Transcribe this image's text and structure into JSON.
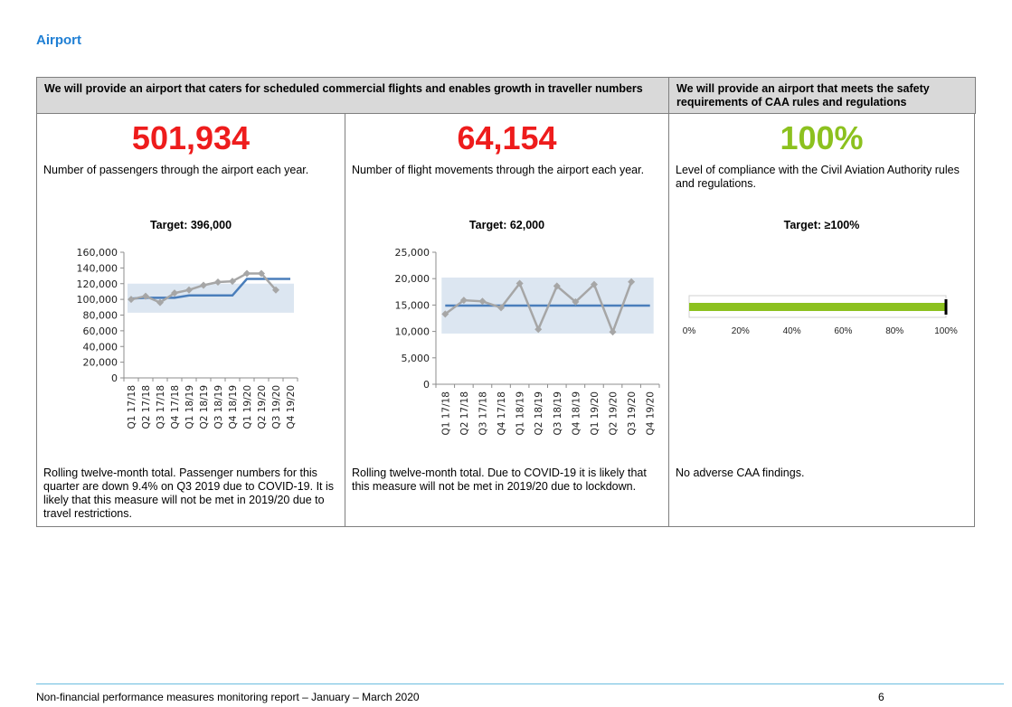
{
  "section_title": "Airport",
  "headers": [
    "We will provide an airport that caters for scheduled commercial flights and enables growth in traveller numbers",
    "We will provide an airport that meets the safety requirements of CAA rules and regulations"
  ],
  "colors": {
    "red": "#ee1c1c",
    "green": "#8cc11f",
    "title_blue": "#1f7fd4",
    "series_grey": "#a6a6a6",
    "series_blue": "#4a7ebb",
    "band": "#dce6f1"
  },
  "measures": [
    {
      "value": "501,934",
      "description": "Number of passengers through the airport each year.",
      "target": "Target: 396,000",
      "note": "Rolling twelve-month total. Passenger numbers for this quarter are down 9.4% on Q3 2019 due to COVID-19. It is likely that this measure will not be met in 2019/20 due to travel restrictions."
    },
    {
      "value": "64,154",
      "description": "Number of flight movements through the airport each year.",
      "target": "Target: 62,000",
      "note": "Rolling twelve-month total. Due to COVID-19 it is likely that this measure will not be met in 2019/20 due to lockdown."
    },
    {
      "value": "100%",
      "description": "Level of compliance with the Civil Aviation Authority rules and regulations.",
      "target": "Target: ≥100%",
      "note": "No adverse CAA findings."
    }
  ],
  "chart_data": [
    {
      "type": "line",
      "categories": [
        "Q1 17/18",
        "Q2 17/18",
        "Q3 17/18",
        "Q4 17/18",
        "Q1 18/19",
        "Q2 18/19",
        "Q3 18/19",
        "Q4 18/19",
        "Q1 19/20",
        "Q2 19/20",
        "Q3 19/20",
        "Q4 19/20"
      ],
      "series": [
        {
          "role": "actual",
          "values": [
            100000,
            104000,
            96000,
            108000,
            112000,
            118000,
            122000,
            123000,
            133000,
            133000,
            112000,
            null
          ]
        },
        {
          "role": "target",
          "values": [
            101000,
            102000,
            102000,
            102000,
            105000,
            105000,
            105000,
            105000,
            126000,
            126000,
            126000,
            126000
          ]
        }
      ],
      "band": [
        83000,
        120000
      ],
      "ylim": [
        0,
        160000
      ],
      "yticks": [
        "160,000",
        "140,000",
        "120,000",
        "100,000",
        "80,000",
        "60,000",
        "40,000",
        "20,000",
        "0"
      ]
    },
    {
      "type": "line",
      "categories": [
        "Q1 17/18",
        "Q2 17/18",
        "Q3 17/18",
        "Q4 17/18",
        "Q1 18/19",
        "Q2 18/19",
        "Q3 18/19",
        "Q4 18/19",
        "Q1 19/20",
        "Q2 19/20",
        "Q3 19/20",
        "Q4 19/20"
      ],
      "series": [
        {
          "role": "actual",
          "values": [
            13300,
            15900,
            15700,
            14500,
            19100,
            10400,
            18600,
            15600,
            18900,
            9900,
            19400,
            null
          ]
        },
        {
          "role": "target",
          "values": [
            14900,
            14900,
            14900,
            14900,
            14900,
            14900,
            14900,
            14900,
            14900,
            14900,
            14900,
            14900
          ]
        }
      ],
      "band": [
        9600,
        20200
      ],
      "ylim": [
        0,
        25000
      ],
      "yticks": [
        "25,000",
        "20,000",
        "15,000",
        "10,000",
        "5,000",
        "0"
      ]
    },
    {
      "type": "bar",
      "orientation": "horizontal",
      "value": 100,
      "target": 100,
      "xlim": [
        0,
        100
      ],
      "xticks": [
        "0%",
        "20%",
        "40%",
        "60%",
        "80%",
        "100%"
      ]
    }
  ],
  "footer": {
    "text": "Non-financial performance measures monitoring report – January – March 2020",
    "page": "6"
  }
}
